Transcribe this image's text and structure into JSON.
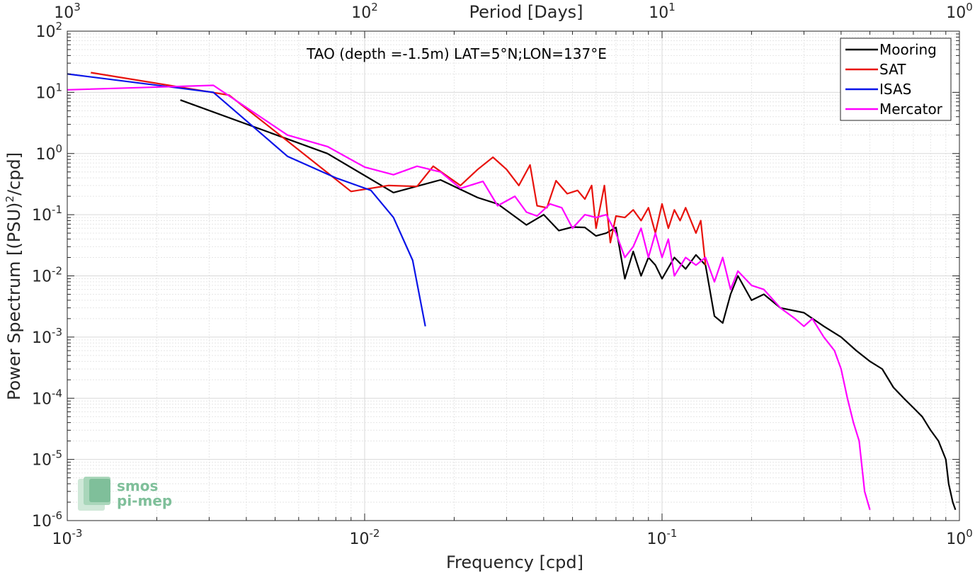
{
  "chart_data": {
    "type": "line",
    "annotation": "TAO (depth =-1.5m) LAT=5°N;LON=137°E",
    "xlabel": "Frequency [cpd]",
    "ylabel_prefix": "Power Spectrum [(PSU)",
    "ylabel_sup": "2",
    "ylabel_suffix": "/cpd]",
    "top_xlabel": "Period [Days]",
    "x_scale": "log",
    "y_scale": "log",
    "xlim": [
      0.001,
      1
    ],
    "ylim": [
      1e-06,
      100
    ],
    "grid": true,
    "legend_position": "top-right",
    "x_ticks": [
      {
        "v": 0.001,
        "base": "10",
        "exp": "-3"
      },
      {
        "v": 0.01,
        "base": "10",
        "exp": "-2"
      },
      {
        "v": 0.1,
        "base": "10",
        "exp": "-1"
      },
      {
        "v": 1,
        "base": "10",
        "exp": "0"
      }
    ],
    "y_ticks": [
      {
        "v": 100,
        "base": "10",
        "exp": "2"
      },
      {
        "v": 10,
        "base": "10",
        "exp": "1"
      },
      {
        "v": 1,
        "base": "10",
        "exp": "0"
      },
      {
        "v": 0.1,
        "base": "10",
        "exp": "-1"
      },
      {
        "v": 0.01,
        "base": "10",
        "exp": "-2"
      },
      {
        "v": 0.001,
        "base": "10",
        "exp": "-3"
      },
      {
        "v": 0.0001,
        "base": "10",
        "exp": "-4"
      },
      {
        "v": 1e-05,
        "base": "10",
        "exp": "-5"
      },
      {
        "v": 1e-06,
        "base": "10",
        "exp": "-6"
      }
    ],
    "top_ticks": [
      {
        "v": 0.001,
        "base": "10",
        "exp": "3"
      },
      {
        "v": 0.01,
        "base": "10",
        "exp": "2"
      },
      {
        "v": 0.1,
        "base": "10",
        "exp": "1"
      },
      {
        "v": 1,
        "base": "10",
        "exp": "0"
      }
    ],
    "series": [
      {
        "name": "Mooring",
        "color": "#000000",
        "points": [
          [
            0.0024,
            7.5
          ],
          [
            0.0075,
            1.0
          ],
          [
            0.0125,
            0.23
          ],
          [
            0.018,
            0.37
          ],
          [
            0.024,
            0.19
          ],
          [
            0.028,
            0.15
          ],
          [
            0.035,
            0.068
          ],
          [
            0.04,
            0.1
          ],
          [
            0.045,
            0.055
          ],
          [
            0.05,
            0.063
          ],
          [
            0.055,
            0.062
          ],
          [
            0.06,
            0.045
          ],
          [
            0.065,
            0.05
          ],
          [
            0.07,
            0.062
          ],
          [
            0.075,
            0.009
          ],
          [
            0.08,
            0.025
          ],
          [
            0.085,
            0.01
          ],
          [
            0.09,
            0.02
          ],
          [
            0.095,
            0.015
          ],
          [
            0.1,
            0.009
          ],
          [
            0.11,
            0.02
          ],
          [
            0.12,
            0.013
          ],
          [
            0.13,
            0.022
          ],
          [
            0.14,
            0.015
          ],
          [
            0.15,
            0.0022
          ],
          [
            0.16,
            0.0017
          ],
          [
            0.17,
            0.005
          ],
          [
            0.18,
            0.01
          ],
          [
            0.2,
            0.004
          ],
          [
            0.22,
            0.005
          ],
          [
            0.25,
            0.003
          ],
          [
            0.3,
            0.0025
          ],
          [
            0.35,
            0.0015
          ],
          [
            0.4,
            0.001
          ],
          [
            0.45,
            0.0006
          ],
          [
            0.5,
            0.0004
          ],
          [
            0.55,
            0.0003
          ],
          [
            0.6,
            0.00015
          ],
          [
            0.65,
            0.0001
          ],
          [
            0.7,
            7e-05
          ],
          [
            0.75,
            5e-05
          ],
          [
            0.8,
            3e-05
          ],
          [
            0.85,
            2e-05
          ],
          [
            0.9,
            1e-05
          ],
          [
            0.92,
            4e-06
          ],
          [
            0.95,
            2e-06
          ],
          [
            0.97,
            1.5e-06
          ]
        ]
      },
      {
        "name": "SAT",
        "color": "#e8120c",
        "points": [
          [
            0.0012,
            21
          ],
          [
            0.0035,
            9
          ],
          [
            0.0055,
            1.6
          ],
          [
            0.009,
            0.24
          ],
          [
            0.012,
            0.3
          ],
          [
            0.015,
            0.29
          ],
          [
            0.017,
            0.62
          ],
          [
            0.021,
            0.3
          ],
          [
            0.024,
            0.55
          ],
          [
            0.027,
            0.87
          ],
          [
            0.03,
            0.55
          ],
          [
            0.033,
            0.3
          ],
          [
            0.036,
            0.65
          ],
          [
            0.038,
            0.14
          ],
          [
            0.041,
            0.13
          ],
          [
            0.044,
            0.36
          ],
          [
            0.048,
            0.22
          ],
          [
            0.052,
            0.25
          ],
          [
            0.055,
            0.18
          ],
          [
            0.058,
            0.3
          ],
          [
            0.06,
            0.06
          ],
          [
            0.064,
            0.3
          ],
          [
            0.067,
            0.035
          ],
          [
            0.07,
            0.095
          ],
          [
            0.075,
            0.09
          ],
          [
            0.08,
            0.12
          ],
          [
            0.085,
            0.08
          ],
          [
            0.09,
            0.13
          ],
          [
            0.095,
            0.05
          ],
          [
            0.1,
            0.15
          ],
          [
            0.105,
            0.06
          ],
          [
            0.11,
            0.12
          ],
          [
            0.115,
            0.08
          ],
          [
            0.12,
            0.13
          ],
          [
            0.13,
            0.05
          ],
          [
            0.135,
            0.08
          ],
          [
            0.14,
            0.015
          ]
        ]
      },
      {
        "name": "ISAS",
        "color": "#0a14e8",
        "points": [
          [
            0.001,
            20
          ],
          [
            0.0031,
            10
          ],
          [
            0.0055,
            0.9
          ],
          [
            0.008,
            0.4
          ],
          [
            0.0105,
            0.25
          ],
          [
            0.0125,
            0.09
          ],
          [
            0.0145,
            0.018
          ],
          [
            0.016,
            0.0015
          ]
        ]
      },
      {
        "name": "Mercator",
        "color": "#ff00ff",
        "points": [
          [
            0.001,
            11
          ],
          [
            0.0031,
            13
          ],
          [
            0.0055,
            2.0
          ],
          [
            0.0075,
            1.3
          ],
          [
            0.01,
            0.6
          ],
          [
            0.0125,
            0.45
          ],
          [
            0.015,
            0.62
          ],
          [
            0.018,
            0.5
          ],
          [
            0.021,
            0.27
          ],
          [
            0.025,
            0.35
          ],
          [
            0.028,
            0.14
          ],
          [
            0.032,
            0.2
          ],
          [
            0.035,
            0.11
          ],
          [
            0.038,
            0.095
          ],
          [
            0.042,
            0.15
          ],
          [
            0.046,
            0.13
          ],
          [
            0.05,
            0.06
          ],
          [
            0.055,
            0.1
          ],
          [
            0.06,
            0.09
          ],
          [
            0.065,
            0.1
          ],
          [
            0.07,
            0.05
          ],
          [
            0.075,
            0.02
          ],
          [
            0.08,
            0.03
          ],
          [
            0.085,
            0.06
          ],
          [
            0.09,
            0.02
          ],
          [
            0.095,
            0.05
          ],
          [
            0.1,
            0.02
          ],
          [
            0.105,
            0.04
          ],
          [
            0.11,
            0.01
          ],
          [
            0.12,
            0.02
          ],
          [
            0.13,
            0.015
          ],
          [
            0.14,
            0.02
          ],
          [
            0.15,
            0.008
          ],
          [
            0.16,
            0.02
          ],
          [
            0.17,
            0.006
          ],
          [
            0.18,
            0.012
          ],
          [
            0.2,
            0.007
          ],
          [
            0.22,
            0.006
          ],
          [
            0.25,
            0.003
          ],
          [
            0.28,
            0.002
          ],
          [
            0.3,
            0.0015
          ],
          [
            0.32,
            0.002
          ],
          [
            0.35,
            0.001
          ],
          [
            0.38,
            0.0006
          ],
          [
            0.4,
            0.0003
          ],
          [
            0.42,
            0.0001
          ],
          [
            0.44,
            4e-05
          ],
          [
            0.46,
            2e-05
          ],
          [
            0.48,
            3e-06
          ],
          [
            0.5,
            1.5e-06
          ]
        ]
      }
    ]
  },
  "logo": {
    "line1": "smos",
    "line2": "pi-mep"
  }
}
